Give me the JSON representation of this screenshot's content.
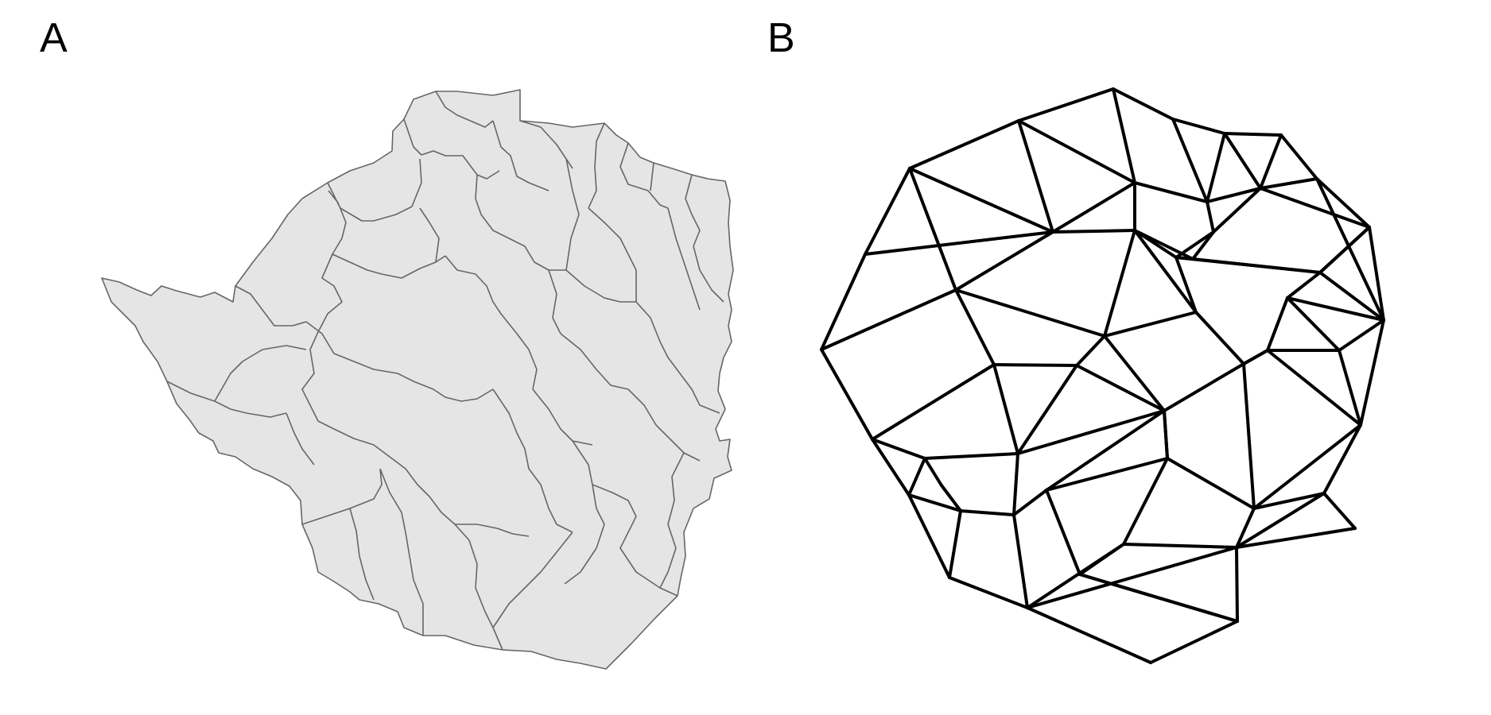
{
  "panels": {
    "a": {
      "label": "A"
    },
    "b": {
      "label": "B"
    }
  },
  "map": {
    "fill": "#e5e5e5",
    "border": "#666666"
  },
  "graph": {
    "edge_color": "#000000"
  }
}
